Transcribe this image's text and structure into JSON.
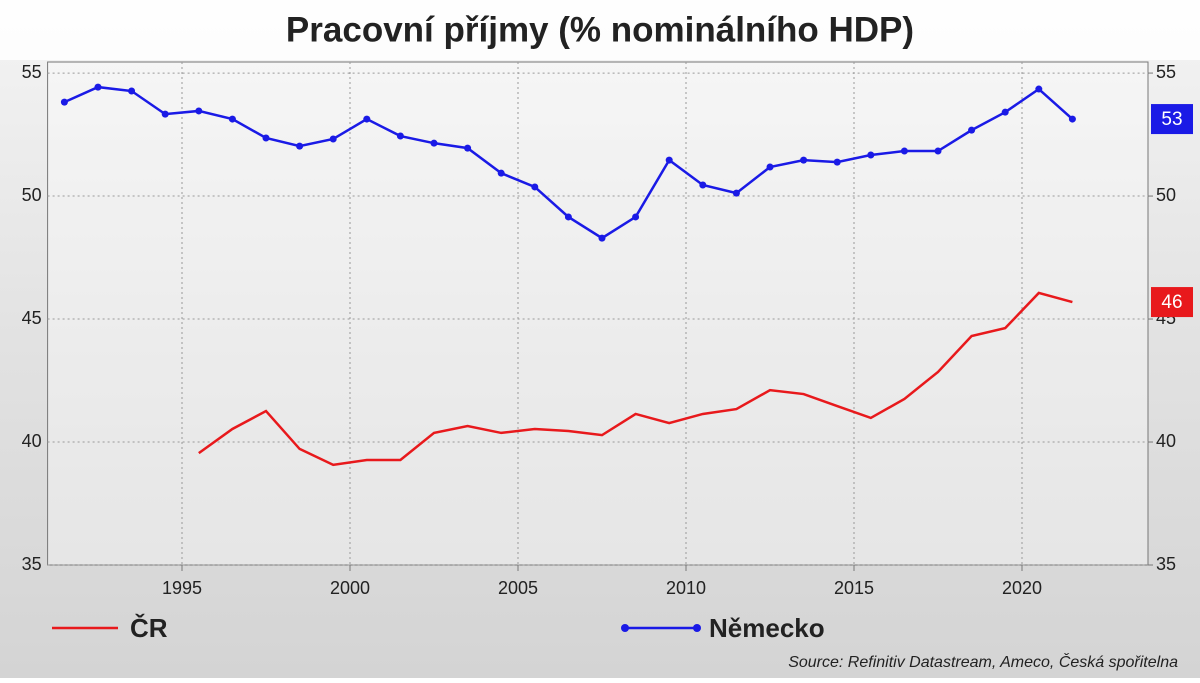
{
  "chart_data": {
    "type": "line",
    "title": "Pracovní příjmy (% nominálního HDP)",
    "source": "Source: Refinitiv Datastream, Ameco, Česká spořitelna",
    "x": [
      1991.5,
      1992.5,
      1993.5,
      1994.5,
      1995.5,
      1996.5,
      1997.5,
      1998.5,
      1999.5,
      2000.5,
      2001.5,
      2002.5,
      2003.5,
      2004.5,
      2005.5,
      2006.5,
      2007.5,
      2008.5,
      2009.5,
      2010.5,
      2011.5,
      2012.5,
      2013.5,
      2014.5,
      2015.5,
      2016.5,
      2017.5,
      2018.5,
      2019.5,
      2020.5,
      2021.5
    ],
    "xlim": [
      1991,
      2023.75
    ],
    "xticks": [
      1995,
      2000,
      2005,
      2010,
      2015,
      2020
    ],
    "ylim": [
      35,
      55.45
    ],
    "yticks": [
      35,
      40,
      45,
      50,
      55
    ],
    "y2lim": [
      35,
      55.45
    ],
    "y2ticks": [
      35,
      40,
      45,
      50,
      55
    ],
    "grid": true,
    "series": [
      {
        "name": "ČR",
        "color": "#e8191c",
        "markers": false,
        "end_label": "46",
        "values": [
          null,
          null,
          null,
          null,
          39.55,
          40.53,
          41.26,
          39.72,
          39.07,
          39.27,
          39.27,
          40.37,
          40.65,
          40.37,
          40.53,
          40.45,
          40.28,
          41.14,
          40.77,
          41.14,
          41.34,
          42.11,
          41.95,
          41.46,
          40.98,
          41.75,
          42.85,
          44.31,
          44.63,
          46.06,
          45.69
        ]
      },
      {
        "name": "Německo",
        "color": "#1a1ae6",
        "markers": true,
        "end_label": "53",
        "values": [
          53.82,
          54.43,
          54.27,
          53.33,
          53.46,
          53.13,
          52.36,
          52.03,
          52.32,
          53.13,
          52.44,
          52.15,
          51.95,
          50.93,
          50.37,
          49.15,
          48.29,
          49.15,
          51.46,
          50.45,
          50.12,
          51.18,
          51.46,
          51.38,
          51.67,
          51.83,
          51.83,
          52.68,
          53.41,
          54.35,
          53.13
        ]
      }
    ]
  }
}
